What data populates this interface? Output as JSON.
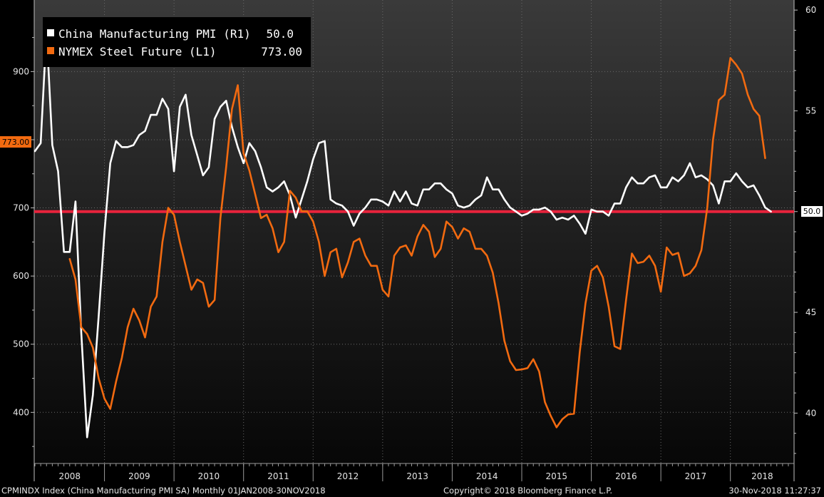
{
  "chart_data": {
    "type": "line",
    "legend": [
      {
        "series": "pmi",
        "label": "China Manufacturing PMI (R1)",
        "value": "50.0",
        "color": "#ffffff"
      },
      {
        "series": "steel",
        "label": "NYMEX Steel Future (L1)",
        "value": "773.00",
        "color": "#f26a10"
      }
    ],
    "last_value_tags": {
      "left": "773.00",
      "right": "50.0"
    },
    "reference_line": {
      "axis": "right",
      "value": 50,
      "color": "#e8233c"
    },
    "left_axis": {
      "min": 325,
      "max": 1005,
      "ticks": [
        400,
        500,
        600,
        700,
        800,
        900
      ]
    },
    "right_axis": {
      "min": 37.5,
      "max": 60.5,
      "ticks": [
        40,
        45,
        50,
        55,
        60
      ]
    },
    "x_range": [
      "2008-01",
      "2018-11"
    ],
    "years": [
      "2008",
      "2009",
      "2010",
      "2011",
      "2012",
      "2013",
      "2014",
      "2015",
      "2016",
      "2017",
      "2018"
    ],
    "grid": true,
    "series": [
      {
        "id": "pmi",
        "name": "China Manufacturing PMI",
        "axis": "right",
        "color": "#ffffff",
        "start": "2008-01",
        "values": [
          53.0,
          53.4,
          59.0,
          53.3,
          52.0,
          48.0,
          48.0,
          50.5,
          44.0,
          38.8,
          40.9,
          44.8,
          49.0,
          52.4,
          53.5,
          53.2,
          53.2,
          53.3,
          53.8,
          54.0,
          54.8,
          54.8,
          55.6,
          55.1,
          52.0,
          55.2,
          55.8,
          53.8,
          52.8,
          51.8,
          52.2,
          54.6,
          55.2,
          55.5,
          54.2,
          53.2,
          52.4,
          53.4,
          53.0,
          52.2,
          51.2,
          51.0,
          51.2,
          51.5,
          50.8,
          49.7,
          50.6,
          51.5,
          52.6,
          53.4,
          53.5,
          50.6,
          50.4,
          50.3,
          50.0,
          49.3,
          49.9,
          50.2,
          50.6,
          50.6,
          50.5,
          50.3,
          51.0,
          50.5,
          51.0,
          50.4,
          50.3,
          51.1,
          51.1,
          51.4,
          51.4,
          51.1,
          50.9,
          50.3,
          50.2,
          50.3,
          50.6,
          50.8,
          51.7,
          51.1,
          51.1,
          50.6,
          50.2,
          50.0,
          49.8,
          49.9,
          50.1,
          50.1,
          50.2,
          50.0,
          49.6,
          49.7,
          49.6,
          49.8,
          49.4,
          48.9,
          50.1,
          50.0,
          50.0,
          49.8,
          50.4,
          50.4,
          51.2,
          51.7,
          51.4,
          51.4,
          51.7,
          51.8,
          51.2,
          51.2,
          51.7,
          51.5,
          51.8,
          52.4,
          51.7,
          51.8,
          51.6,
          51.3,
          50.4,
          51.5,
          51.5,
          51.9,
          51.5,
          51.2,
          51.3,
          50.8,
          50.2,
          50.0
        ]
      },
      {
        "id": "steel",
        "name": "NYMEX Steel Future",
        "axis": "left",
        "color": "#f26a10",
        "start": "2008-07",
        "values": [
          625,
          595,
          525,
          515,
          495,
          450,
          420,
          405,
          445,
          480,
          525,
          552,
          535,
          510,
          555,
          570,
          650,
          700,
          690,
          650,
          615,
          580,
          595,
          590,
          555,
          565,
          685,
          760,
          845,
          880,
          780,
          755,
          720,
          685,
          690,
          670,
          635,
          650,
          725,
          715,
          695,
          695,
          680,
          650,
          600,
          635,
          640,
          598,
          620,
          650,
          655,
          630,
          615,
          615,
          580,
          570,
          630,
          642,
          645,
          630,
          658,
          675,
          665,
          628,
          640,
          680,
          672,
          655,
          670,
          665,
          640,
          640,
          630,
          605,
          560,
          505,
          475,
          462,
          463,
          465,
          478,
          460,
          415,
          395,
          378,
          390,
          397,
          398,
          488,
          560,
          608,
          615,
          598,
          555,
          497,
          493,
          565,
          633,
          619,
          621,
          630,
          615,
          577,
          642,
          631,
          634,
          600,
          604,
          615,
          638,
          700,
          800,
          858,
          866,
          920,
          910,
          897,
          866,
          845,
          835,
          773
        ]
      }
    ],
    "footer": {
      "left": "CPMINDX Index (China Manufacturing PMI SA)  Monthly 01JAN2008-30NOV2018",
      "center": "Copyright© 2018 Bloomberg Finance L.P.",
      "right": "30-Nov-2018 11:27:37"
    }
  }
}
